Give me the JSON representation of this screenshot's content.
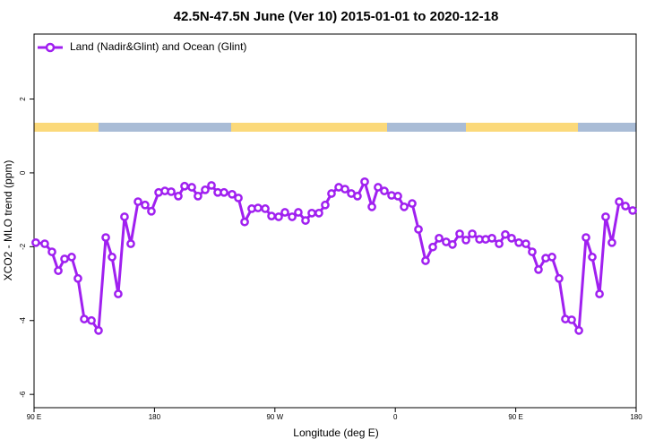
{
  "chart_data": {
    "type": "line",
    "title": "42.5N-47.5N June (Ver 10)   2015-01-01 to 2020-12-18",
    "xlabel": "Longitude (deg E)",
    "ylabel": "XCO2 - MLO trend (ppm)",
    "legend_position": "top-left",
    "xlim": [
      90,
      540
    ],
    "ylim": [
      -6.36,
      3.76
    ],
    "xticks": [
      {
        "value": 90,
        "label": "90 E"
      },
      180,
      {
        "value": 270,
        "label": "90 W"
      },
      {
        "value": 360,
        "label": "0"
      },
      {
        "value": 450,
        "label": "90 E"
      },
      {
        "value": 540,
        "label": "180"
      }
    ],
    "yticks": [
      -6,
      -4,
      -2,
      0,
      2
    ],
    "series": [
      {
        "name": "Land (Nadir&Glint) and Ocean (Glint)",
        "color": "#a020f0",
        "x": [
          91.3,
          98.0,
          103.4,
          108.1,
          112.8,
          118.1,
          122.8,
          127.5,
          132.9,
          138.2,
          143.6,
          148.3,
          152.9,
          157.6,
          162.3,
          167.7,
          173.0,
          177.7,
          183.1,
          187.8,
          192.5,
          197.8,
          202.5,
          207.9,
          212.5,
          217.9,
          222.6,
          227.3,
          232.0,
          238.0,
          242.7,
          247.4,
          252.7,
          257.4,
          262.8,
          267.5,
          272.8,
          277.5,
          282.9,
          287.5,
          292.9,
          297.6,
          302.9,
          307.6,
          312.3,
          317.7,
          322.4,
          327.1,
          331.7,
          337.1,
          342.5,
          347.1,
          351.8,
          357.2,
          361.9,
          366.6,
          372.6,
          377.3,
          382.6,
          388.0,
          392.7,
          398.0,
          402.7,
          408.1,
          412.8,
          417.5,
          422.9,
          427.5,
          432.2,
          437.6,
          442.2,
          446.9,
          452.3,
          457.6,
          462.3,
          467.0,
          472.4,
          477.1,
          482.4,
          487.1,
          491.8,
          497.2,
          502.5,
          507.2,
          512.6,
          517.2,
          521.9,
          527.3,
          532.0,
          537.4
        ],
        "values": [
          -1.89,
          -1.92,
          -2.14,
          -2.65,
          -2.33,
          -2.28,
          -2.86,
          -3.96,
          -4.0,
          -4.27,
          -1.75,
          -2.28,
          -3.28,
          -1.19,
          -1.92,
          -0.78,
          -0.87,
          -1.04,
          -0.53,
          -0.49,
          -0.51,
          -0.63,
          -0.36,
          -0.39,
          -0.63,
          -0.46,
          -0.34,
          -0.53,
          -0.53,
          -0.58,
          -0.68,
          -1.33,
          -0.97,
          -0.95,
          -0.97,
          -1.17,
          -1.19,
          -1.07,
          -1.19,
          -1.07,
          -1.29,
          -1.09,
          -1.09,
          -0.87,
          -0.56,
          -0.39,
          -0.44,
          -0.56,
          -0.63,
          -0.24,
          -0.92,
          -0.39,
          -0.49,
          -0.61,
          -0.63,
          -0.92,
          -0.83,
          -1.53,
          -2.38,
          -2.01,
          -1.77,
          -1.87,
          -1.94,
          -1.65,
          -1.82,
          -1.65,
          -1.8,
          -1.8,
          -1.77,
          -1.92,
          -1.67,
          -1.77,
          -1.89,
          -1.92,
          -2.14,
          -2.62,
          -2.31,
          -2.28,
          -2.86,
          -3.96,
          -3.98,
          -4.27,
          -1.75,
          -2.28,
          -3.28,
          -1.19,
          -1.89,
          -0.78,
          -0.9,
          -1.02
        ]
      }
    ]
  }
}
